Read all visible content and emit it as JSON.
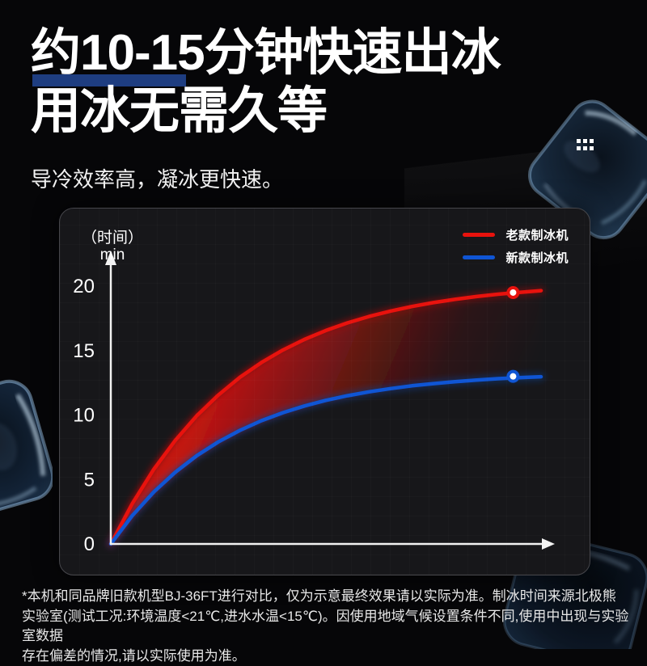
{
  "colors": {
    "page_bg": "#060608",
    "panel_bg": "#17171a",
    "underline_blue": "#1e3d80",
    "accent_red": "#e8120d",
    "accent_blue": "#0f55d4",
    "axis": "#f2f2f2",
    "text": "#ffffff",
    "footnote_text": "#e8e8e8"
  },
  "header": {
    "title_line1": "约10-15分钟快速出冰",
    "title_line2": "用冰无需久等",
    "subtitle": "导冷效率高，凝冰更快速。"
  },
  "decor": {
    "dots_icon": "dots-grid",
    "ice_cubes": "ice-cube-photos"
  },
  "chart_data": {
    "type": "line",
    "title": "",
    "xlabel": "",
    "ylabel": "时间 (min)",
    "unit_label_line1": "（时间）",
    "unit_label_line2": "min",
    "yticks": [
      0,
      5,
      10,
      15,
      20
    ],
    "ylim": [
      0,
      22
    ],
    "xlim": [
      0,
      10
    ],
    "grid": "faint",
    "legend_position": "top-right",
    "series": [
      {
        "name": "老款制冰机",
        "color": "#e8120d",
        "x": [
          0,
          0.5,
          1,
          1.5,
          2,
          2.5,
          3,
          3.5,
          4,
          4.5,
          5,
          5.5,
          6,
          6.5,
          7,
          7.5,
          8,
          8.5,
          9,
          9.5,
          10
        ],
        "values": [
          0,
          3.13,
          5.79,
          8.04,
          9.95,
          11.55,
          12.92,
          14.07,
          15.04,
          15.86,
          16.56,
          17.15,
          17.64,
          18.06,
          18.42,
          18.72,
          18.97,
          19.19,
          19.37,
          19.52,
          19.65
        ],
        "end_dot": {
          "x": 9.35,
          "y": 19.5
        },
        "final_time_min": 19.5
      },
      {
        "name": "新款制冰机",
        "color": "#0f55d4",
        "x": [
          0,
          0.5,
          1,
          1.5,
          2,
          2.5,
          3,
          3.5,
          4,
          4.5,
          5,
          5.5,
          6,
          6.5,
          7,
          7.5,
          8,
          8.5,
          9,
          9.5,
          10
        ],
        "values": [
          0,
          2.2,
          4.04,
          5.57,
          6.85,
          7.92,
          8.81,
          9.56,
          10.18,
          10.7,
          11.14,
          11.5,
          11.8,
          12.05,
          12.27,
          12.44,
          12.59,
          12.71,
          12.82,
          12.9,
          12.97
        ],
        "end_dot": {
          "x": 9.35,
          "y": 13.0
        },
        "final_time_min": 13.0
      }
    ],
    "fill_between": {
      "from": "老款制冰机",
      "to": "新款制冰机",
      "color": "#e01510"
    }
  },
  "footnote": {
    "lines": [
      "*本机和同品牌旧款机型BJ-36FT进行对比，仅为示意最终效果请以实际为准。制冰时间来源北极熊",
      "实验室(测试工况:环境温度<21℃,进水水温<15℃)。因使用地域气候设置条件不同,使用中出现与实验室数据",
      "存在偏差的情况,请以实际使用为准。"
    ]
  }
}
